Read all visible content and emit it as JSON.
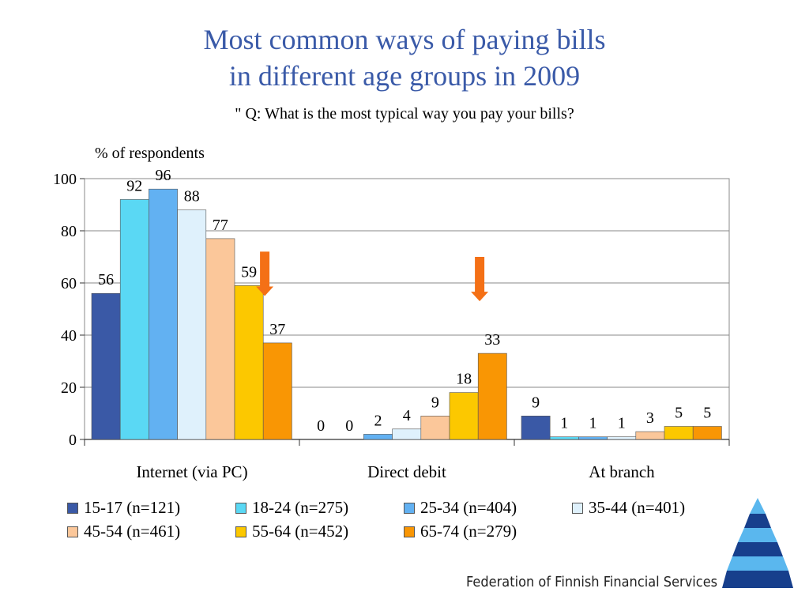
{
  "title_lines": [
    "Most common ways of paying bills",
    "in different age groups in 2009"
  ],
  "subtitle": "\" Q: What is the most typical way you pay your bills?",
  "footer_org": "Federation of Finnish Financial Services",
  "colors": {
    "title": "#3a5aa8",
    "arrow": "#f47016",
    "series": [
      "#3a59a6",
      "#5ad8f4",
      "#62b1f2",
      "#dff1fc",
      "#fbc79a",
      "#fcc800",
      "#f99604"
    ]
  },
  "chart_data": {
    "type": "bar",
    "title": "Most common ways of paying bills in different age groups in 2009",
    "subtitle": "\" Q: What is the most typical way you pay your bills?",
    "ylabel": "% of respondents",
    "xlabel": "",
    "ylim": [
      0,
      100
    ],
    "yticks": [
      0,
      20,
      40,
      60,
      80,
      100
    ],
    "grid": true,
    "legend_position": "bottom",
    "categories": [
      "Internet (via PC)",
      "Direct debit",
      "At branch"
    ],
    "series": [
      {
        "name": "15-17 (n=121)",
        "values": [
          56,
          0,
          9
        ]
      },
      {
        "name": "18-24 (n=275)",
        "values": [
          92,
          0,
          1
        ]
      },
      {
        "name": "25-34 (n=404)",
        "values": [
          96,
          2,
          1
        ]
      },
      {
        "name": "35-44 (n=401)",
        "values": [
          88,
          4,
          1
        ]
      },
      {
        "name": "45-54 (n=461)",
        "values": [
          77,
          9,
          3
        ]
      },
      {
        "name": "55-64 (n=452)",
        "values": [
          59,
          18,
          5
        ]
      },
      {
        "name": "65-74 (n=279)",
        "values": [
          37,
          33,
          5
        ]
      }
    ],
    "annotations": [
      {
        "type": "arrow-down",
        "category": "Internet (via PC)",
        "series": "55-64 (n=452)"
      },
      {
        "type": "arrow-down",
        "category": "Direct debit",
        "series": "55-64 (n=452)"
      }
    ]
  }
}
